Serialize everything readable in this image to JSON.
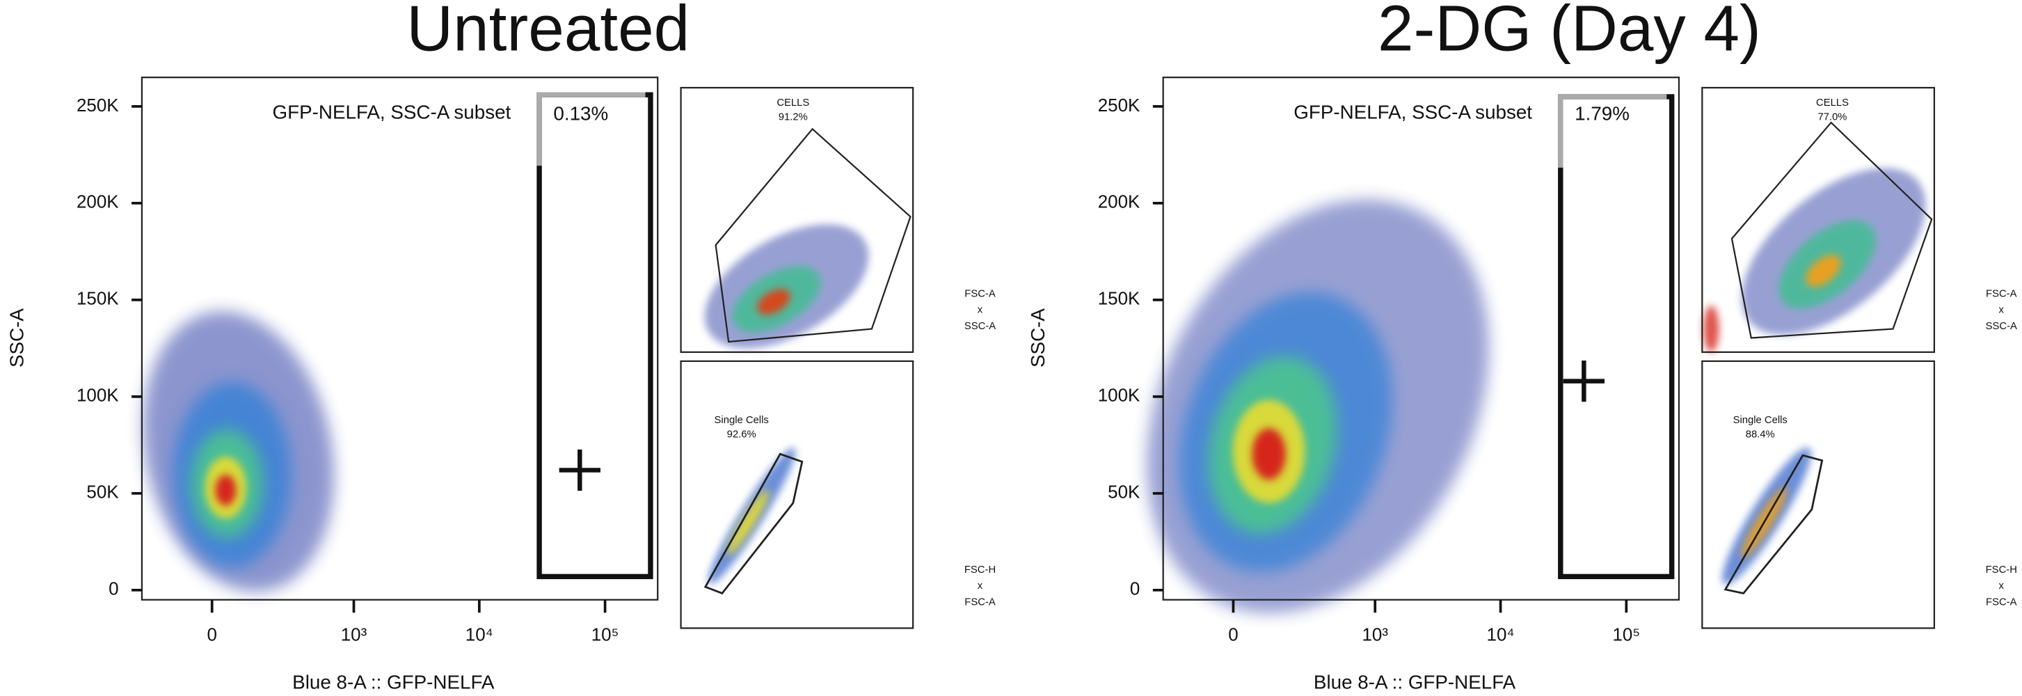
{
  "chart_data": [
    {
      "type": "scatter",
      "title": "Untreated",
      "x_label": "Blue 8-A :: GFP-NELFA",
      "y_label": "SSC-A",
      "xscale": "biexponential",
      "xlim": [
        -250,
        262144
      ],
      "xticks": [
        0,
        {
          "value": 1000,
          "label": "10³"
        },
        {
          "value": 10000,
          "label": "10⁴"
        },
        {
          "value": 100000,
          "label": "10⁵"
        }
      ],
      "ylim": [
        -5000,
        265000
      ],
      "yticks": [
        0,
        {
          "value": 50000,
          "label": "50K"
        },
        {
          "value": 100000,
          "label": "100K"
        },
        {
          "value": 150000,
          "label": "150K"
        },
        {
          "value": 200000,
          "label": "200K"
        },
        {
          "value": 250000,
          "label": "250K"
        }
      ],
      "gate": {
        "name": "GFP-NELFA, SSC-A subset",
        "percent": "0.13%",
        "x": [
          30000,
          230000
        ],
        "y": [
          7000,
          256000
        ]
      },
      "median": {
        "x": 63000,
        "y": 62000
      },
      "insets": [
        {
          "gate": "CELLS",
          "percent": "91.2%",
          "axes": [
            "FSC-A",
            "x",
            "SSC-A"
          ]
        },
        {
          "gate": "Single Cells",
          "percent": "92.6%",
          "axes": [
            "FSC-H",
            "x",
            "FSC-A"
          ]
        }
      ]
    },
    {
      "type": "scatter",
      "title": "2-DG (Day 4)",
      "x_label": "Blue 8-A :: GFP-NELFA",
      "y_label": "SSC-A",
      "xscale": "biexponential",
      "xlim": [
        -250,
        262144
      ],
      "xticks": [
        0,
        {
          "value": 1000,
          "label": "10³"
        },
        {
          "value": 10000,
          "label": "10⁴"
        },
        {
          "value": 100000,
          "label": "10⁵"
        }
      ],
      "ylim": [
        -5000,
        265000
      ],
      "yticks": [
        0,
        {
          "value": 50000,
          "label": "50K"
        },
        {
          "value": 100000,
          "label": "100K"
        },
        {
          "value": 150000,
          "label": "150K"
        },
        {
          "value": 200000,
          "label": "200K"
        },
        {
          "value": 250000,
          "label": "250K"
        }
      ],
      "gate": {
        "name": "GFP-NELFA, SSC-A subset",
        "percent": "1.79%",
        "x": [
          30000,
          230000
        ],
        "y": [
          7000,
          255000
        ]
      },
      "median": {
        "x": 46000,
        "y": 108000
      },
      "insets": [
        {
          "gate": "CELLS",
          "percent": "77.0%",
          "axes": [
            "FSC-A",
            "x",
            "SSC-A"
          ]
        },
        {
          "gate": "Single Cells",
          "percent": "88.4%",
          "axes": [
            "FSC-H",
            "x",
            "FSC-A"
          ]
        }
      ]
    }
  ]
}
